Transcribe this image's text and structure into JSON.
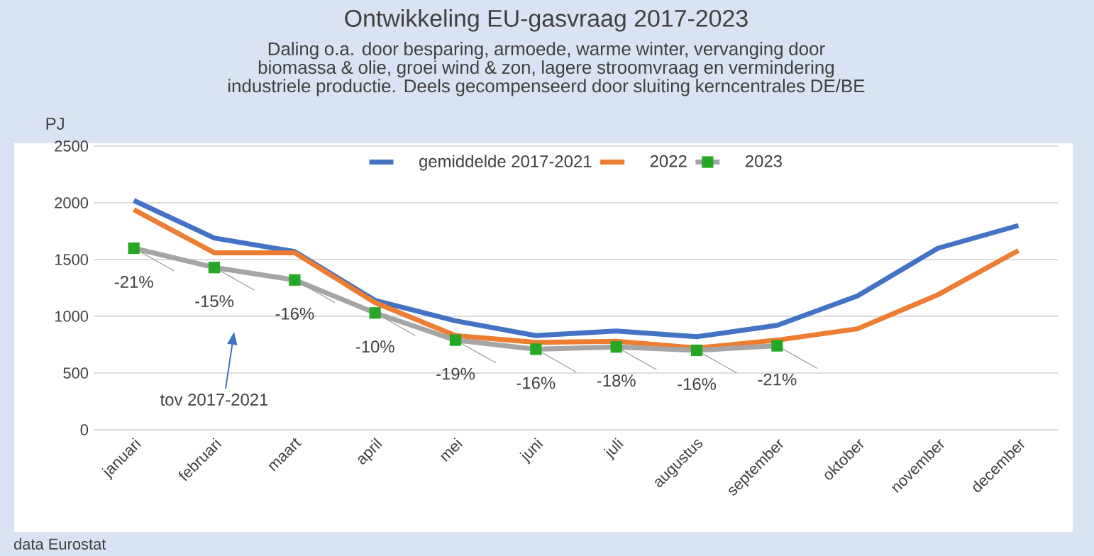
{
  "chart_data": {
    "type": "line",
    "title": "Ontwikkeling EU-gasvraag 2017-2023",
    "subtitle": "Daling o.a. door besparing, armoede, warme winter, vervanging door biomassa & olie, groei wind & zon, lagere stroomvraag en vermindering industriele productie. Deels gecompenseerd door sluiting kerncentrales DE/BE",
    "ylabel": "PJ",
    "categories": [
      "januari",
      "februari",
      "maart",
      "april",
      "mei",
      "juni",
      "juli",
      "augustus",
      "september",
      "oktober",
      "november",
      "december"
    ],
    "series": [
      {
        "name": "gemiddelde 2017-2021",
        "color": "#4472c4",
        "marker": "none",
        "values": [
          2020,
          1690,
          1570,
          1140,
          960,
          830,
          870,
          820,
          920,
          1180,
          1600,
          1800
        ]
      },
      {
        "name": "2022",
        "color": "#ed7d31",
        "marker": "none",
        "values": [
          1940,
          1560,
          1560,
          1120,
          830,
          770,
          780,
          720,
          790,
          890,
          1190,
          1580
        ]
      },
      {
        "name": "2023",
        "color": "#a5a5a5",
        "marker": "square",
        "values": [
          1600,
          1430,
          1320,
          1030,
          790,
          710,
          730,
          700,
          740,
          null,
          null,
          null
        ]
      }
    ],
    "ylim": [
      0,
      2500
    ],
    "yticks": [
      0,
      500,
      1000,
      1500,
      2000,
      2500
    ],
    "grid": "y",
    "legend": "top",
    "annotations": [
      {
        "text": "-21%",
        "x": "januari",
        "y": 1600
      },
      {
        "text": "-15%",
        "x": "februari",
        "y": 1430
      },
      {
        "text": "-16%",
        "x": "maart",
        "y": 1320
      },
      {
        "text": "-10%",
        "x": "april",
        "y": 1030
      },
      {
        "text": "-19%",
        "x": "mei",
        "y": 790
      },
      {
        "text": "-16%",
        "x": "juni",
        "y": 710
      },
      {
        "text": "-18%",
        "x": "juli",
        "y": 730
      },
      {
        "text": "-16%",
        "x": "augustus",
        "y": 700
      },
      {
        "text": "-21%",
        "x": "september",
        "y": 740
      },
      "tov 2017-2021",
      "data Eurostat"
    ]
  }
}
